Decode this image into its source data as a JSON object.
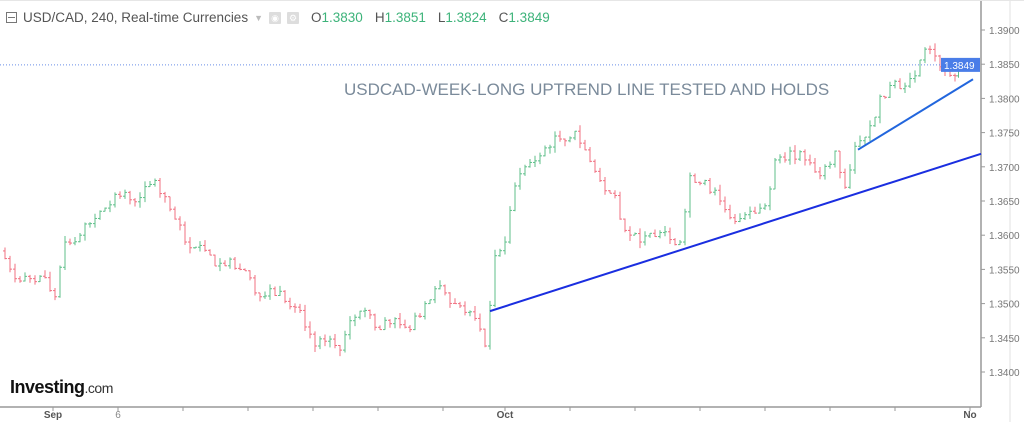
{
  "header": {
    "symbol": "USD/CAD, 240, Real-time Currencies",
    "o_label": "O",
    "o": "1.3830",
    "h_label": "H",
    "h": "1.3851",
    "l_label": "L",
    "l": "1.3824",
    "c_label": "C",
    "c": "1.3849"
  },
  "logo": {
    "text": "Investing",
    "suffix": ".com"
  },
  "colors": {
    "up": "#5fbf8a",
    "down": "#f07080",
    "trend": "#1a2ee0",
    "trend2": "#2266dd",
    "price_tag": "#4a7de8"
  },
  "chart_data": {
    "type": "ohlc",
    "title": "USDCAD-WEEK-LONG UPTREND LINE TESTED AND HOLDS",
    "ylim": [
      1.3365,
      1.3925
    ],
    "yticks": [
      "1.3900",
      "1.3850",
      "1.3800",
      "1.3750",
      "1.3700",
      "1.3650",
      "1.3600",
      "1.3550",
      "1.3500",
      "1.3450",
      "1.3400"
    ],
    "xticks": [
      {
        "t": 10.6,
        "label": "Sep"
      },
      {
        "t": 23.6,
        "label": "6"
      },
      {
        "t": 36.6,
        "label": ""
      },
      {
        "t": 49.6,
        "label": ""
      },
      {
        "t": 62.6,
        "label": ""
      },
      {
        "t": 75.6,
        "label": ""
      },
      {
        "t": 88.6,
        "label": ""
      },
      {
        "t": 101,
        "label": "Oct"
      },
      {
        "t": 114,
        "label": ""
      },
      {
        "t": 127,
        "label": ""
      },
      {
        "t": 140,
        "label": ""
      },
      {
        "t": 153,
        "label": ""
      },
      {
        "t": 166,
        "label": ""
      },
      {
        "t": 179,
        "label": ""
      },
      {
        "t": 194,
        "label": "No"
      }
    ],
    "last_price": "1.3849",
    "closes": [
      [
        0,
        1.3577
      ],
      [
        4,
        1.3533
      ],
      [
        8,
        1.354
      ],
      [
        11,
        1.351
      ],
      [
        13,
        1.359
      ],
      [
        16,
        1.36
      ],
      [
        20,
        1.3635
      ],
      [
        24,
        1.3657
      ],
      [
        28,
        1.3655
      ],
      [
        31,
        1.368
      ],
      [
        34,
        1.3638
      ],
      [
        37,
        1.359
      ],
      [
        40,
        1.3585
      ],
      [
        43,
        1.3555
      ],
      [
        46,
        1.3565
      ],
      [
        49,
        1.3548
      ],
      [
        52,
        1.351
      ],
      [
        56,
        1.3518
      ],
      [
        60,
        1.349
      ],
      [
        63,
        1.3438
      ],
      [
        65,
        1.3445
      ],
      [
        68,
        1.3432
      ],
      [
        70,
        1.3475
      ],
      [
        73,
        1.349
      ],
      [
        76,
        1.3462
      ],
      [
        79,
        1.3478
      ],
      [
        82,
        1.3462
      ],
      [
        85,
        1.35
      ],
      [
        88,
        1.3526
      ],
      [
        91,
        1.35
      ],
      [
        94,
        1.3488
      ],
      [
        97,
        1.3438
      ],
      [
        99,
        1.357
      ],
      [
        101,
        1.359
      ],
      [
        103,
        1.3672
      ],
      [
        105,
        1.37
      ],
      [
        108,
        1.3716
      ],
      [
        111,
        1.3745
      ],
      [
        113,
        1.3738
      ],
      [
        115,
        1.3752
      ],
      [
        118,
        1.3708
      ],
      [
        121,
        1.3665
      ],
      [
        123,
        1.3658
      ],
      [
        125,
        1.3607
      ],
      [
        128,
        1.359
      ],
      [
        131,
        1.3598
      ],
      [
        133,
        1.3605
      ],
      [
        136,
        1.359
      ],
      [
        138,
        1.3687
      ],
      [
        141,
        1.368
      ],
      [
        144,
        1.365
      ],
      [
        147,
        1.362
      ],
      [
        150,
        1.3635
      ],
      [
        153,
        1.3643
      ],
      [
        155,
        1.371
      ],
      [
        158,
        1.3723
      ],
      [
        161,
        1.371
      ],
      [
        164,
        1.3687
      ],
      [
        167,
        1.3723
      ],
      [
        169,
        1.367
      ],
      [
        171,
        1.373
      ],
      [
        174,
        1.376
      ],
      [
        176,
        1.3803
      ],
      [
        179,
        1.3825
      ],
      [
        181,
        1.3818
      ],
      [
        183,
        1.3833
      ],
      [
        185,
        1.3872
      ],
      [
        187,
        1.3862
      ],
      [
        189,
        1.384
      ],
      [
        191,
        1.3833
      ],
      [
        192.4,
        1.3849
      ]
    ],
    "trendlines": [
      {
        "name": "long-uptrend",
        "t1": 98,
        "p1": 1.3489,
        "t2": 196.2,
        "p2": 1.3719
      },
      {
        "name": "short-uptrend",
        "t1": 171.6,
        "p1": 1.3725,
        "t2": 194.6,
        "p2": 1.3828
      }
    ]
  }
}
